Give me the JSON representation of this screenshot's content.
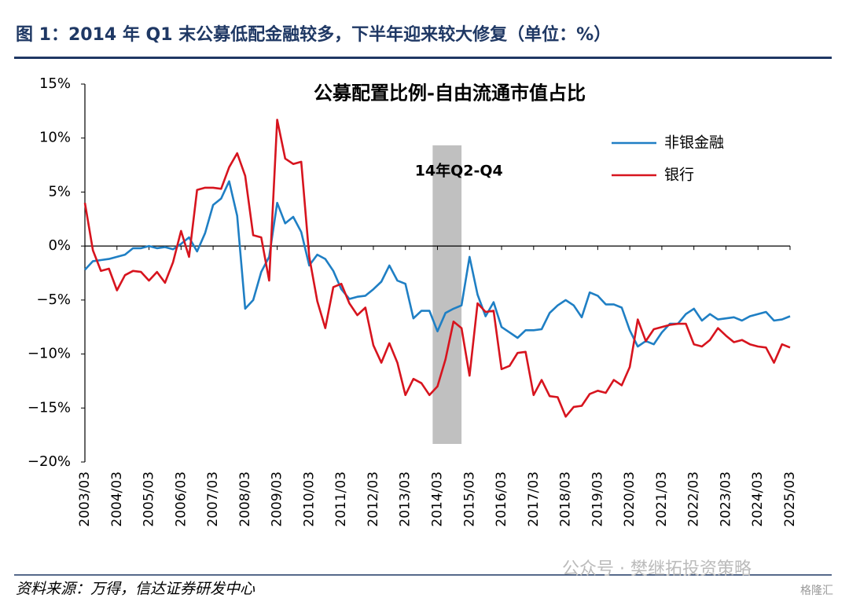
{
  "header": {
    "title": "图 1：2014 年 Q1 末公募低配金融较多，下半年迎来较大修复（单位：%）"
  },
  "chart_data": {
    "type": "line",
    "title": "公募配置比例-自由流通市值占比",
    "categories": [
      "2003/03",
      null,
      null,
      null,
      "2004/03",
      null,
      null,
      null,
      "2005/03",
      null,
      null,
      null,
      "2006/03",
      null,
      null,
      null,
      "2007/03",
      null,
      null,
      null,
      "2008/03",
      null,
      null,
      null,
      "2009/03",
      null,
      null,
      null,
      "2010/03",
      null,
      null,
      null,
      "2011/03",
      null,
      null,
      null,
      "2012/03",
      null,
      null,
      null,
      "2013/03",
      null,
      null,
      null,
      "2014/03",
      null,
      null,
      null,
      "2015/03",
      null,
      null,
      null,
      "2016/03",
      null,
      null,
      null,
      "2017/03",
      null,
      null,
      null,
      "2018/03",
      null,
      null,
      null,
      "2019/03",
      null,
      null,
      null,
      "2020/03",
      null,
      null,
      null,
      "2021/03",
      null,
      null,
      null,
      "2022/03",
      null,
      null,
      null,
      "2023/03",
      null,
      null,
      null,
      "2024/03",
      null,
      null,
      null,
      "2025/03"
    ],
    "series": [
      {
        "name": "非银金融",
        "color": "#1f7fc4",
        "values": [
          -2.2,
          -1.4,
          -1.3,
          -1.2,
          -1.0,
          -0.8,
          -0.2,
          -0.2,
          0,
          -0.2,
          -0.1,
          -0.3,
          0.2,
          0.8,
          -0.5,
          1.2,
          3.8,
          4.4,
          6.0,
          2.8,
          -5.8,
          -5.0,
          -2.4,
          -1.0,
          4.0,
          2.1,
          2.7,
          1.3,
          -1.8,
          -0.8,
          -1.2,
          -2.3,
          -4.0,
          -4.9,
          -4.7,
          -4.6,
          -4.0,
          -3.3,
          -1.8,
          -3.2,
          -3.5,
          -6.7,
          -6.0,
          -6.0,
          -7.9,
          -6.2,
          -5.8,
          -5.5,
          -1.0,
          -4.5,
          -6.5,
          -5.2,
          -7.5,
          -8.0,
          -8.5,
          -7.8,
          -7.8,
          -7.7,
          -6.2,
          -5.5,
          -5.0,
          -5.5,
          -6.6,
          -4.3,
          -4.6,
          -5.4,
          -5.4,
          -5.7,
          -7.8,
          -9.3,
          -8.8,
          -9.1,
          -8.0,
          -7.2,
          -7.2,
          -6.3,
          -5.8,
          -6.9,
          -6.3,
          -6.8,
          -6.7,
          -6.6,
          -6.9,
          -6.5,
          -6.3,
          -6.1,
          -6.9,
          -6.8,
          -6.5
        ]
      },
      {
        "name": "银行",
        "color": "#d7141e",
        "values": [
          4.0,
          -0.4,
          -2.3,
          -2.1,
          -4.1,
          -2.7,
          -2.3,
          -2.4,
          -3.2,
          -2.4,
          -3.4,
          -1.5,
          1.4,
          -1.0,
          5.2,
          5.4,
          5.4,
          5.3,
          7.3,
          8.6,
          6.5,
          1.0,
          0.8,
          -3.2,
          11.7,
          8.1,
          7.6,
          7.8,
          -1.0,
          -5.1,
          -7.6,
          -3.8,
          -3.5,
          -5.3,
          -6.4,
          -5.7,
          -9.2,
          -10.8,
          -9.0,
          -10.8,
          -13.8,
          -12.3,
          -12.7,
          -13.8,
          -13.0,
          -10.5,
          -7.0,
          -7.6,
          -12.0,
          -5.3,
          -6.1,
          -6.0,
          -11.4,
          -11.1,
          -9.9,
          -9.8,
          -13.8,
          -12.4,
          -13.9,
          -14.0,
          -15.8,
          -14.9,
          -14.8,
          -13.7,
          -13.4,
          -13.6,
          -12.4,
          -12.9,
          -11.2,
          -6.8,
          -8.8,
          -7.7,
          -7.5,
          -7.3,
          -7.2,
          -7.2,
          -9.1,
          -9.3,
          -8.7,
          -7.6,
          -8.3,
          -8.9,
          -8.7,
          -9.1,
          -9.3,
          -9.4,
          -10.8,
          -9.1,
          -9.4
        ]
      }
    ],
    "ylim": [
      -20,
      15
    ],
    "yticks": [
      {
        "value": -20,
        "label": "−20%"
      },
      {
        "value": -15,
        "label": "−15%"
      },
      {
        "value": -10,
        "label": "−10%"
      },
      {
        "value": -5,
        "label": "−5%"
      },
      {
        "value": 0,
        "label": "0%"
      },
      {
        "value": 5,
        "label": "5%"
      },
      {
        "value": 10,
        "label": "10%"
      },
      {
        "value": 15,
        "label": "15%"
      }
    ],
    "annotation": {
      "text": "14年Q2-Q4",
      "x_range": [
        43.4,
        47
      ]
    },
    "legend": "upper right"
  },
  "footer": {
    "source": "资料来源：万得，信达证券研发中心",
    "watermark": "公众号 · 樊继拓投资策略",
    "logo": "格隆汇"
  }
}
